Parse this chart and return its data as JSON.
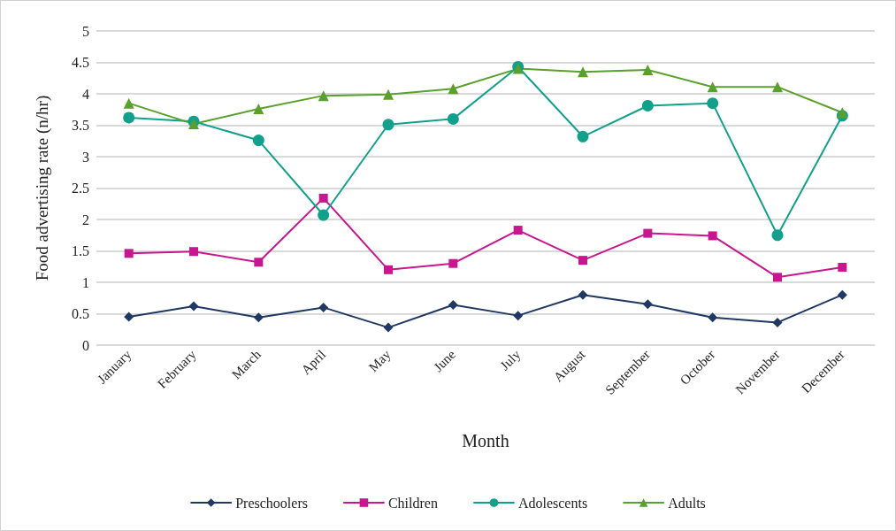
{
  "chart_data": {
    "type": "line",
    "xlabel": "Month",
    "ylabel": "Food advertising rate (n/hr)",
    "categories": [
      "January",
      "February",
      "March",
      "April",
      "May",
      "June",
      "July",
      "August",
      "September",
      "October",
      "November",
      "December"
    ],
    "series": [
      {
        "name": "Preschoolers",
        "color": "#1f3864",
        "marker": "diamond",
        "values": [
          0.45,
          0.62,
          0.44,
          0.6,
          0.28,
          0.64,
          0.47,
          0.8,
          0.65,
          0.44,
          0.36,
          0.8
        ]
      },
      {
        "name": "Children",
        "color": "#c7168f",
        "marker": "square",
        "values": [
          1.46,
          1.49,
          1.32,
          2.34,
          1.2,
          1.3,
          1.83,
          1.35,
          1.78,
          1.74,
          1.08,
          1.24
        ]
      },
      {
        "name": "Adolescents",
        "color": "#12a08c",
        "marker": "circle",
        "values": [
          3.62,
          3.56,
          3.26,
          2.07,
          3.51,
          3.6,
          4.43,
          3.32,
          3.81,
          3.85,
          1.75,
          3.65
        ]
      },
      {
        "name": "Adults",
        "color": "#5aa02c",
        "marker": "triangle",
        "values": [
          3.85,
          3.52,
          3.76,
          3.97,
          3.99,
          4.08,
          4.4,
          4.35,
          4.38,
          4.11,
          4.11,
          3.7
        ]
      }
    ],
    "ylim": [
      0,
      5
    ],
    "yticks": [
      0,
      0.5,
      1,
      1.5,
      2,
      2.5,
      3,
      3.5,
      4,
      4.5,
      5
    ],
    "grid": "y",
    "legend": "bottom",
    "line_style": "solid"
  }
}
